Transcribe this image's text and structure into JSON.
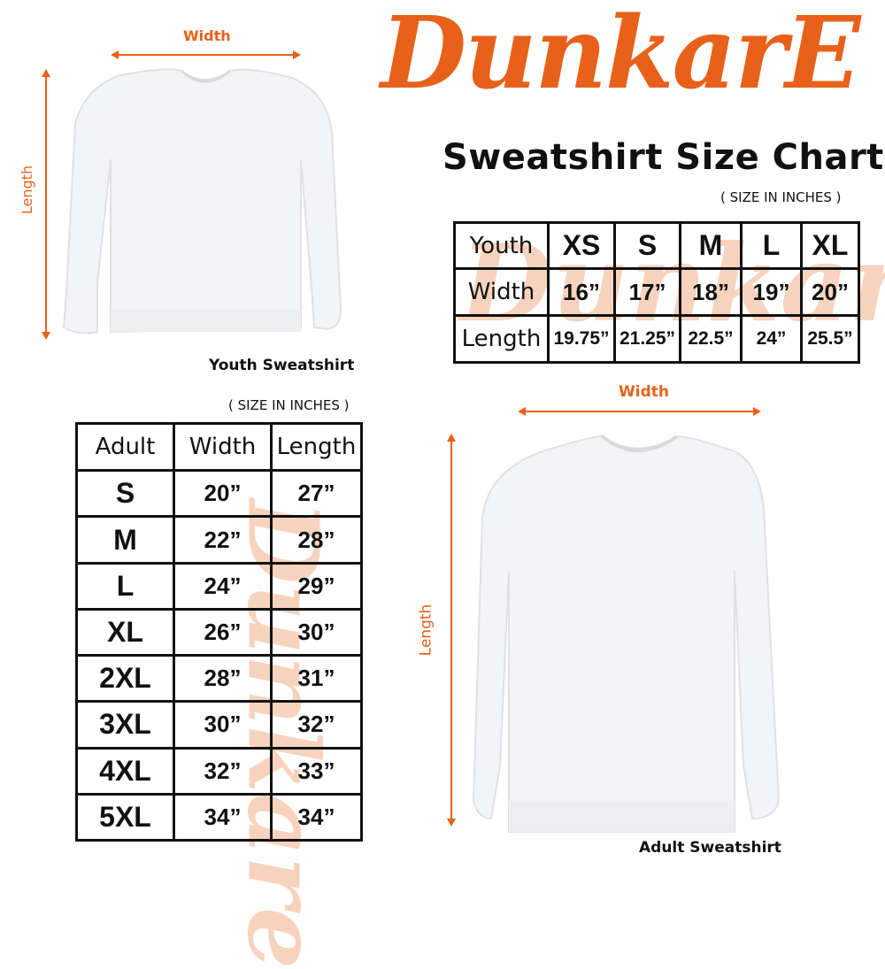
{
  "brand": {
    "logo_text": "DunkarE",
    "color": "#e8611a"
  },
  "title": "Sweatshirt Size Chart",
  "youth": {
    "caption": "Youth Sweatshirt",
    "width_label": "Width",
    "length_label": "Length",
    "units_note": "( SIZE IN INCHES )",
    "table": {
      "header": [
        "Youth",
        "XS",
        "S",
        "M",
        "L",
        "XL"
      ],
      "rows": [
        [
          "Width",
          "16”",
          "17”",
          "18”",
          "19”",
          "20”"
        ],
        [
          "Length",
          "19.75”",
          "21.25”",
          "22.5”",
          "24”",
          "25.5”"
        ]
      ]
    }
  },
  "adult": {
    "caption": "Adult Sweatshirt",
    "width_label": "Width",
    "length_label": "Length",
    "units_note": "( SIZE IN INCHES )",
    "table": {
      "header": [
        "Adult",
        "Width",
        "Length"
      ],
      "rows": [
        [
          "S",
          "20”",
          "27”"
        ],
        [
          "M",
          "22”",
          "28”"
        ],
        [
          "L",
          "24”",
          "29”"
        ],
        [
          "XL",
          "26”",
          "30”"
        ],
        [
          "2XL",
          "28”",
          "31”"
        ],
        [
          "3XL",
          "30”",
          "32”"
        ],
        [
          "4XL",
          "32”",
          "33”"
        ],
        [
          "5XL",
          "34”",
          "34”"
        ]
      ]
    }
  }
}
